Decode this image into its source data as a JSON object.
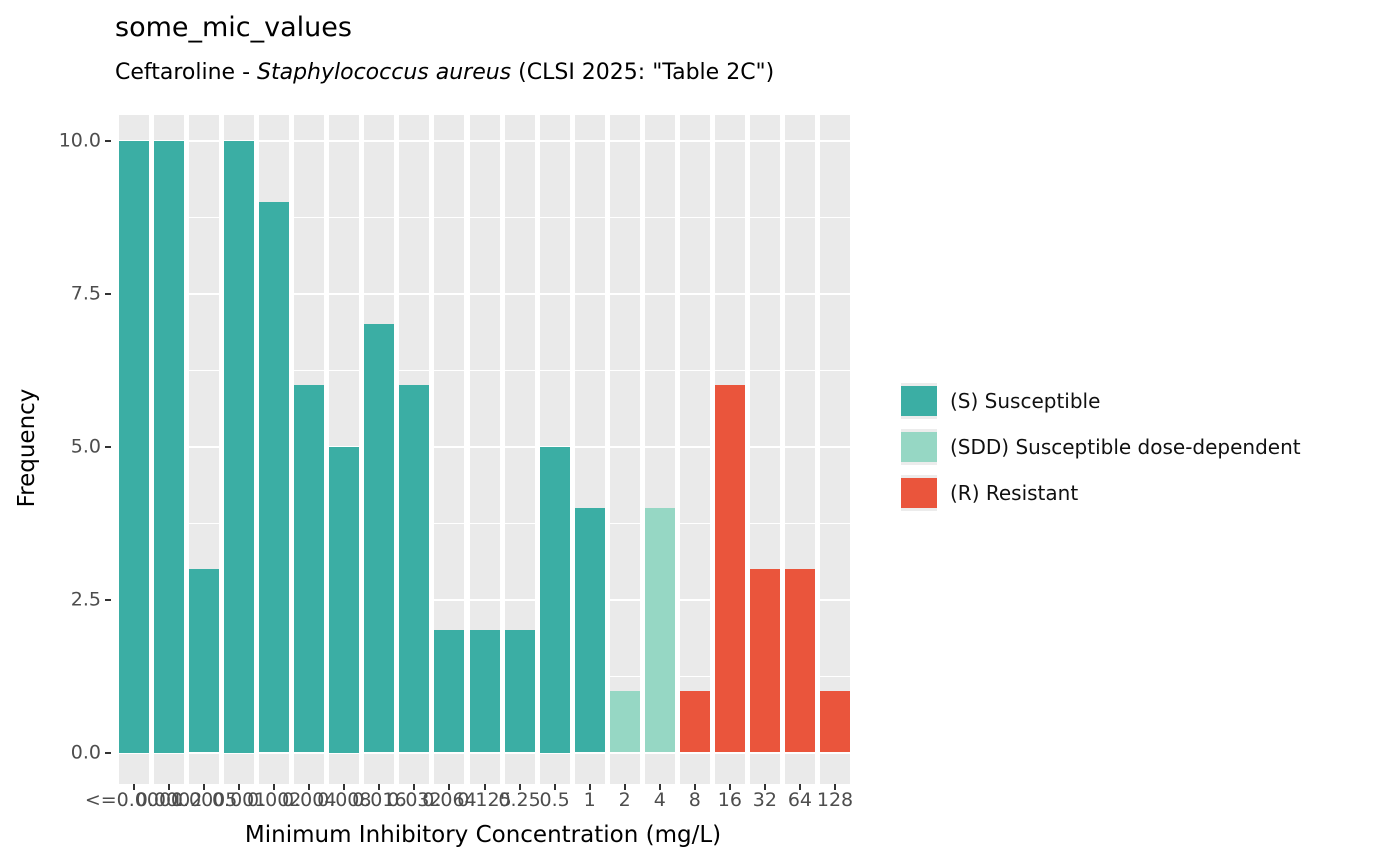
{
  "title": "some_mic_values",
  "subtitle": {
    "prefix": "Ceftaroline - ",
    "italic": "Staphylococcus aureus",
    "suffix": " (CLSI 2025: \"Table 2C\")"
  },
  "chart_data": {
    "type": "bar",
    "title": "some_mic_values",
    "subtitle_plain": "Ceftaroline - Staphylococcus aureus (CLSI 2025: \"Table 2C\")",
    "xlabel": "Minimum Inhibitory Concentration (mg/L)",
    "ylabel": "Frequency",
    "ylim": [
      0,
      10.5
    ],
    "grid": "white major and minor horizontal gridlines over gray category stripes",
    "legend_position": "right",
    "y_major_ticks": [
      0,
      2.5,
      5,
      7.5,
      10
    ],
    "y_tick_labels": [
      "0.0",
      "2.5",
      "5.0",
      "7.5",
      "10.0"
    ],
    "y_minor_ticks": [
      1.25,
      3.75,
      6.25,
      8.75
    ],
    "categories": [
      "<=0.0001",
      "0.0002",
      "0.0005",
      "0.001",
      "0.002",
      "0.004",
      "0.008",
      "0.016",
      "0.032",
      "0.064",
      "0.125",
      "0.25",
      "0.5",
      "1",
      "2",
      "4",
      "8",
      "16",
      "32",
      "64",
      "128"
    ],
    "values": [
      10,
      10,
      3,
      10,
      9,
      6,
      5,
      7,
      6,
      2,
      2,
      2,
      5,
      4,
      1,
      4,
      1,
      6,
      3,
      3,
      1
    ],
    "interpretations": [
      "S",
      "S",
      "S",
      "S",
      "S",
      "S",
      "S",
      "S",
      "S",
      "S",
      "S",
      "S",
      "S",
      "S",
      "SDD",
      "SDD",
      "R",
      "R",
      "R",
      "R",
      "R"
    ],
    "colors": {
      "S": "#3baea4",
      "SDD": "#96d7c4",
      "R": "#ea553c",
      "stripe": "#eaeaea",
      "tick_label": "#4d4d4d"
    },
    "legend": [
      {
        "key": "S",
        "label": "(S) Susceptible"
      },
      {
        "key": "SDD",
        "label": "(SDD) Susceptible dose-dependent"
      },
      {
        "key": "R",
        "label": "(R) Resistant"
      }
    ]
  }
}
